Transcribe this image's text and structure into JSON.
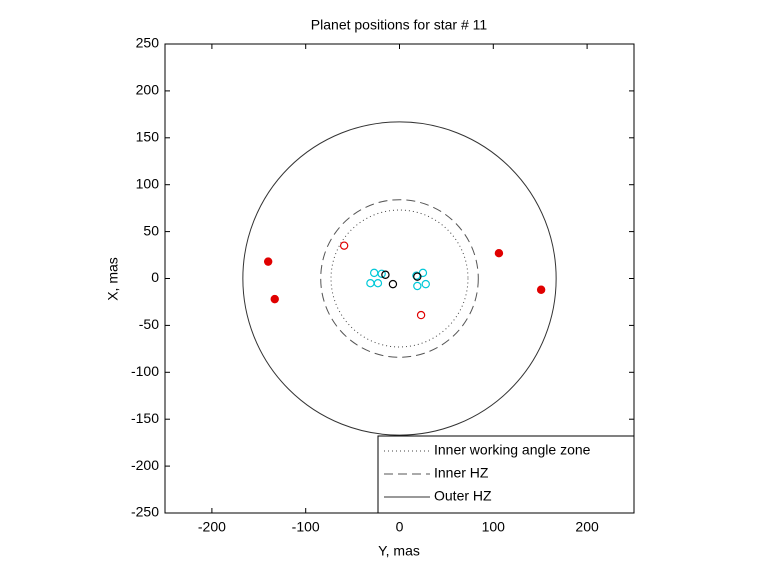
{
  "chart_data": {
    "type": "scatter",
    "title": "Planet positions for star # 11",
    "x_label": "Y, mas",
    "y_label": "X, mas",
    "xlim": [
      -250,
      250
    ],
    "ylim": [
      -250,
      250
    ],
    "xticks": [
      -200,
      -100,
      0,
      100,
      200
    ],
    "yticks": [
      -250,
      -200,
      -150,
      -100,
      -50,
      0,
      50,
      100,
      150,
      200,
      250
    ],
    "grid": false,
    "legend_position": "lower right",
    "circles": [
      {
        "name": "Inner working angle zone",
        "radius": 73,
        "style": "dotted",
        "color": "#444444"
      },
      {
        "name": "Inner HZ",
        "radius": 84,
        "style": "dashed",
        "color": "#555555"
      },
      {
        "name": "Outer HZ",
        "radius": 167,
        "style": "solid",
        "color": "#333333"
      }
    ],
    "series": [
      {
        "color": "#e00000",
        "filled": true,
        "x": [
          -140,
          -133,
          106,
          151
        ],
        "values": [
          18,
          -22,
          27,
          -12
        ]
      },
      {
        "color": "#e00000",
        "filled": false,
        "x": [
          -59,
          23
        ],
        "values": [
          35,
          -39
        ]
      },
      {
        "color": "#00c8d8",
        "filled": false,
        "x": [
          -27,
          -31,
          -23,
          -19,
          18,
          25,
          28,
          19
        ],
        "values": [
          6,
          -5,
          -5,
          5,
          3,
          6,
          -6,
          -8
        ]
      },
      {
        "color": "#000000",
        "filled": false,
        "x": [
          -15,
          -7,
          19
        ],
        "values": [
          4,
          -6,
          2
        ]
      }
    ]
  }
}
